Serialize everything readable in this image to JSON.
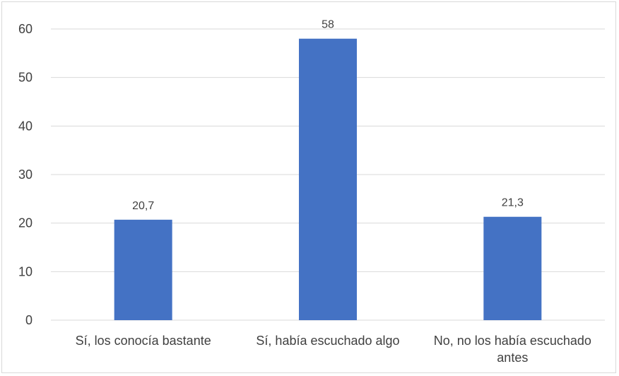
{
  "chart_data": {
    "type": "bar",
    "title": "",
    "xlabel": "",
    "ylabel": "",
    "categories": [
      [
        "Sí, los conocía bastante"
      ],
      [
        "Sí, había escuchado algo"
      ],
      [
        "No, no los había escuchado",
        "antes"
      ]
    ],
    "values": [
      20.7,
      58,
      21.3
    ],
    "data_labels": [
      "20,7",
      "58",
      "21,3"
    ],
    "ylim": [
      0,
      60
    ],
    "yticks": [
      0,
      10,
      20,
      30,
      40,
      50,
      60
    ],
    "grid": true,
    "legend": "none",
    "bar_color": "#4472C4",
    "grid_color": "#d9d9d9",
    "text_color": "#404040"
  }
}
